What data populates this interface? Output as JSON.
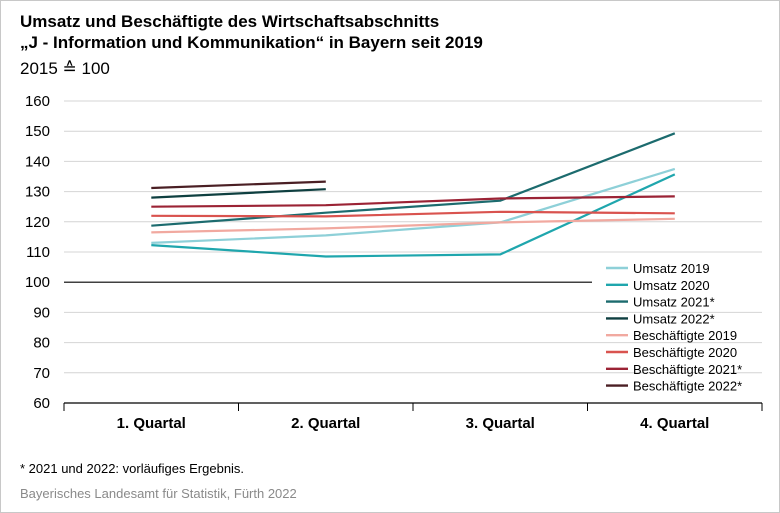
{
  "header": {
    "title_line1": "Umsatz und Beschäftigte des Wirtschaftsabschnitts",
    "title_line2": "„J - Information und Kommunikation“ in Bayern seit 2019",
    "subtitle": "2015 ≙ 100"
  },
  "footer": {
    "footnote": "*  2021 und 2022: vorläufiges Ergebnis.",
    "source": "Bayerisches Landesamt für Statistik, Fürth 2022"
  },
  "chart_data": {
    "type": "line",
    "categories": [
      "1. Quartal",
      "2. Quartal",
      "3. Quartal",
      "4. Quartal"
    ],
    "ylim": [
      60,
      160
    ],
    "yticks": [
      60,
      70,
      80,
      90,
      100,
      110,
      120,
      130,
      140,
      150,
      160
    ],
    "reference_line": 100,
    "grid": "horizontal",
    "legend_position": "bottom-right",
    "series": [
      {
        "name": "Umsatz 2019",
        "color": "#8ed0d8",
        "values": [
          113.0,
          115.5,
          119.8,
          137.5
        ]
      },
      {
        "name": "Umsatz 2020",
        "color": "#1fa6ad",
        "values": [
          112.3,
          108.5,
          109.2,
          135.7
        ]
      },
      {
        "name": "Umsatz 2021*",
        "color": "#1c6b6e",
        "values": [
          118.7,
          123.0,
          127.0,
          149.3
        ]
      },
      {
        "name": "Umsatz 2022*",
        "color": "#0e3f40",
        "values": [
          128.0,
          130.8,
          null,
          null
        ]
      },
      {
        "name": "Beschäftigte 2019",
        "color": "#f1a9a0",
        "values": [
          116.5,
          117.8,
          119.8,
          121.0
        ]
      },
      {
        "name": "Beschäftigte 2020",
        "color": "#d9534f",
        "values": [
          122.0,
          121.8,
          123.3,
          122.8
        ]
      },
      {
        "name": "Beschäftigte 2021*",
        "color": "#9b2335",
        "values": [
          125.0,
          125.5,
          127.7,
          128.4
        ]
      },
      {
        "name": "Beschäftigte 2022*",
        "color": "#4a1f24",
        "values": [
          131.2,
          133.3,
          null,
          null
        ]
      }
    ]
  }
}
